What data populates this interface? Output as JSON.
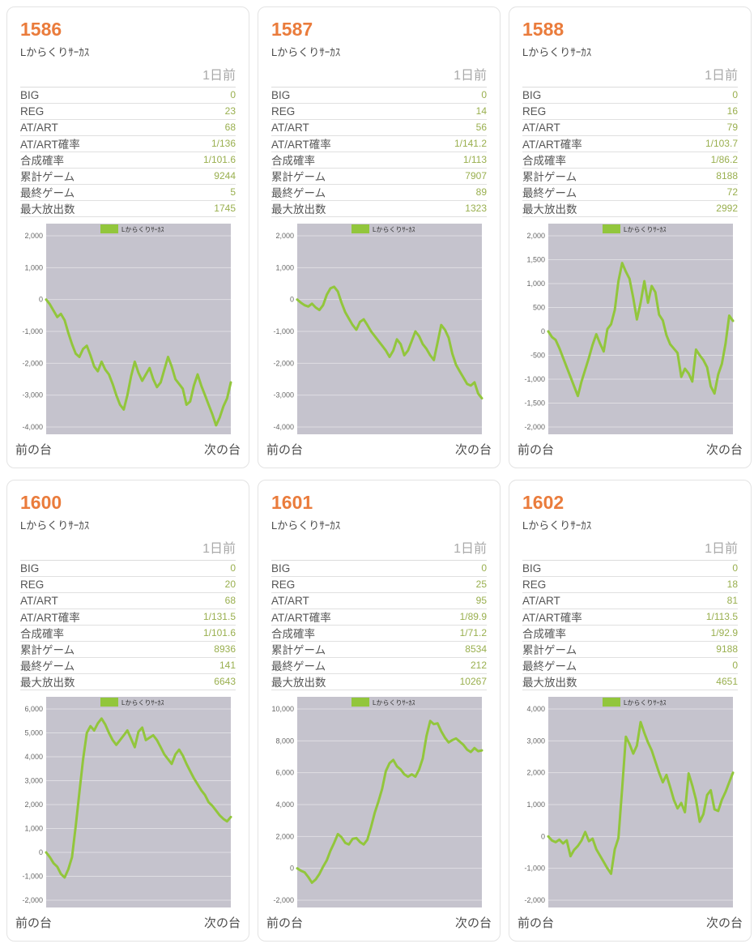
{
  "theme": {
    "accent_orange": "#EA7C3C",
    "value_green": "#99AF4E",
    "line_green": "#92C63C",
    "plot_bg": "#C5C3CD",
    "tick_color": "#666666",
    "legend_text_color": "#333333"
  },
  "labels": {
    "machine_name": "Lからくりｻｰｶｽ",
    "time_label": "1日前",
    "legend_label": "Lからくりｻｰｶｽ",
    "prev_link": "前の台",
    "next_link": "次の台",
    "stat_keys": [
      "BIG",
      "REG",
      "AT/ART",
      "AT/ART確率",
      "合成確率",
      "累計ゲーム",
      "最終ゲーム",
      "最大放出数"
    ]
  },
  "machines": [
    {
      "number": "1586",
      "stats": [
        "0",
        "23",
        "68",
        "1/136",
        "1/101.6",
        "9244",
        "5",
        "1745"
      ]
    },
    {
      "number": "1587",
      "stats": [
        "0",
        "14",
        "56",
        "1/141.2",
        "1/113",
        "7907",
        "89",
        "1323"
      ]
    },
    {
      "number": "1588",
      "stats": [
        "0",
        "16",
        "79",
        "1/103.7",
        "1/86.2",
        "8188",
        "72",
        "2992"
      ]
    },
    {
      "number": "1600",
      "stats": [
        "0",
        "20",
        "68",
        "1/131.5",
        "1/101.6",
        "8936",
        "141",
        "6643"
      ]
    },
    {
      "number": "1601",
      "stats": [
        "0",
        "25",
        "95",
        "1/89.9",
        "1/71.2",
        "8534",
        "212",
        "10267"
      ]
    },
    {
      "number": "1602",
      "stats": [
        "0",
        "18",
        "81",
        "1/113.5",
        "1/92.9",
        "9188",
        "0",
        "4651"
      ]
    }
  ],
  "chart_data": [
    {
      "type": "line",
      "machine": "1586",
      "title": "Lからくりｻｰｶｽ slump graph",
      "legend": "Lからくりｻｰｶｽ",
      "ylim": [
        -4000,
        2000
      ],
      "ytick_step": 1000,
      "grid": true,
      "legend_position": "top-center",
      "values": [
        0,
        -150,
        -350,
        -550,
        -450,
        -650,
        -1050,
        -1400,
        -1700,
        -1800,
        -1550,
        -1450,
        -1750,
        -2100,
        -2250,
        -1950,
        -2200,
        -2350,
        -2650,
        -3000,
        -3300,
        -3450,
        -3000,
        -2400,
        -1950,
        -2300,
        -2550,
        -2350,
        -2150,
        -2500,
        -2750,
        -2600,
        -2200,
        -1800,
        -2100,
        -2500,
        -2650,
        -2800,
        -3300,
        -3200,
        -2700,
        -2350,
        -2700,
        -3000,
        -3300,
        -3600,
        -3950,
        -3700,
        -3350,
        -3100,
        -2600
      ]
    },
    {
      "type": "line",
      "machine": "1587",
      "title": "Lからくりｻｰｶｽ slump graph",
      "legend": "Lからくりｻｰｶｽ",
      "ylim": [
        -4000,
        2000
      ],
      "ytick_step": 1000,
      "grid": true,
      "legend_position": "top-center",
      "values": [
        0,
        -100,
        -180,
        -220,
        -130,
        -250,
        -330,
        -180,
        150,
        350,
        400,
        250,
        -100,
        -400,
        -600,
        -800,
        -950,
        -700,
        -620,
        -800,
        -1000,
        -1150,
        -1300,
        -1450,
        -1600,
        -1800,
        -1600,
        -1250,
        -1400,
        -1750,
        -1600,
        -1300,
        -1000,
        -1150,
        -1400,
        -1550,
        -1750,
        -1900,
        -1350,
        -800,
        -950,
        -1200,
        -1700,
        -2050,
        -2250,
        -2450,
        -2650,
        -2700,
        -2600,
        -2950,
        -3100
      ]
    },
    {
      "type": "line",
      "machine": "1588",
      "title": "Lからくりｻｰｶｽ slump graph",
      "legend": "Lからくりｻｰｶｽ",
      "ylim": [
        -2000,
        2000
      ],
      "ytick_step": 500,
      "grid": true,
      "legend_position": "top-center",
      "values": [
        0,
        -120,
        -180,
        -350,
        -550,
        -750,
        -950,
        -1150,
        -1350,
        -1050,
        -800,
        -550,
        -280,
        -60,
        -250,
        -420,
        50,
        150,
        450,
        1050,
        1430,
        1250,
        1100,
        700,
        250,
        600,
        1050,
        600,
        950,
        820,
        350,
        230,
        -80,
        -270,
        -360,
        -450,
        -950,
        -780,
        -880,
        -1050,
        -380,
        -500,
        -600,
        -750,
        -1150,
        -1300,
        -900,
        -680,
        -250,
        330,
        220
      ]
    },
    {
      "type": "line",
      "machine": "1600",
      "title": "Lからくりｻｰｶｽ slump graph",
      "legend": "Lからくりｻｰｶｽ",
      "ylim": [
        -2000,
        6000
      ],
      "ytick_step": 1000,
      "grid": true,
      "legend_position": "top-center",
      "values": [
        0,
        -200,
        -450,
        -600,
        -900,
        -1050,
        -700,
        -200,
        1100,
        2500,
        3900,
        5000,
        5280,
        5100,
        5400,
        5600,
        5350,
        5000,
        4700,
        4500,
        4700,
        4900,
        5100,
        4750,
        4400,
        5050,
        5220,
        4700,
        4800,
        4900,
        4700,
        4400,
        4100,
        3900,
        3700,
        4100,
        4300,
        4050,
        3700,
        3400,
        3100,
        2850,
        2600,
        2400,
        2100,
        1950,
        1750,
        1550,
        1400,
        1300,
        1480
      ]
    },
    {
      "type": "line",
      "machine": "1601",
      "title": "Lからくりｻｰｶｽ slump graph",
      "legend": "Lからくりｻｰｶｽ",
      "ylim": [
        -2000,
        10000
      ],
      "ytick_step": 2000,
      "grid": true,
      "legend_position": "top-center",
      "values": [
        0,
        -150,
        -250,
        -550,
        -900,
        -700,
        -350,
        100,
        500,
        1100,
        1600,
        2150,
        1950,
        1600,
        1500,
        1850,
        1900,
        1650,
        1500,
        1800,
        2600,
        3500,
        4200,
        5000,
        6100,
        6600,
        6800,
        6400,
        6200,
        5900,
        5750,
        5900,
        5750,
        6200,
        6900,
        8300,
        9250,
        9050,
        9100,
        8600,
        8200,
        7900,
        8050,
        8150,
        7950,
        7750,
        7450,
        7300,
        7550,
        7350,
        7400
      ]
    },
    {
      "type": "line",
      "machine": "1602",
      "title": "Lからくりｻｰｶｽ slump graph",
      "legend": "Lからくりｻｰｶｽ",
      "ylim": [
        -2000,
        4000
      ],
      "ytick_step": 1000,
      "grid": true,
      "legend_position": "top-center",
      "values": [
        0,
        -130,
        -180,
        -100,
        -220,
        -120,
        -620,
        -420,
        -300,
        -130,
        140,
        -150,
        -70,
        -400,
        -600,
        -800,
        -1000,
        -1170,
        -400,
        -50,
        1500,
        3130,
        2900,
        2600,
        2850,
        3590,
        3250,
        2950,
        2700,
        2350,
        2000,
        1700,
        1930,
        1550,
        1150,
        880,
        1050,
        760,
        1980,
        1600,
        1150,
        460,
        700,
        1300,
        1450,
        850,
        800,
        1150,
        1400,
        1700,
        2000
      ]
    }
  ]
}
